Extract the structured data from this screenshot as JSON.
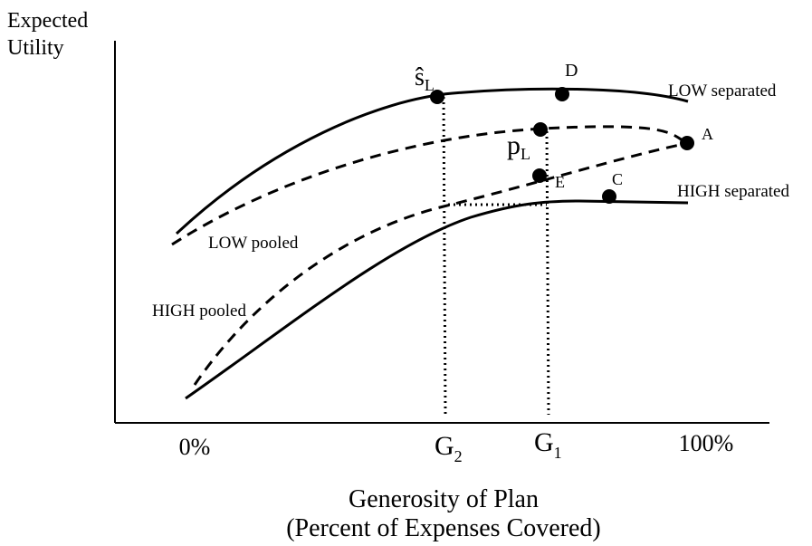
{
  "y_axis_label": [
    "Expected",
    "Utility"
  ],
  "x_axis_label": [
    "Generosity of Plan",
    "(Percent of Expenses Covered)"
  ],
  "x_ticks": [
    {
      "main": "0%"
    },
    {
      "main": "G",
      "sub": "2"
    },
    {
      "main": "G",
      "sub": "1"
    },
    {
      "main": "100%"
    }
  ],
  "curves": [
    {
      "label": "LOW separated"
    },
    {
      "label": "LOW pooled"
    },
    {
      "label": "HIGH pooled"
    },
    {
      "label": "HIGH separated"
    }
  ],
  "points": [
    {
      "main": "ŝ",
      "sub": "L"
    },
    {
      "main": "D"
    },
    {
      "main": "p",
      "sub": "L"
    },
    {
      "main": "A"
    },
    {
      "main": "E"
    },
    {
      "main": "C"
    }
  ]
}
